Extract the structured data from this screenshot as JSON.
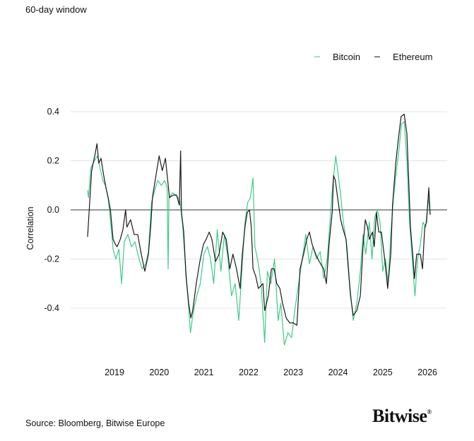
{
  "subtitle": "60-day window",
  "source": "Source: Bloomberg, Bitwise Europe",
  "logo": {
    "text": "Bitwise",
    "mark": "®"
  },
  "chart_data": {
    "type": "line",
    "title": "",
    "subtitle": "60-day window",
    "xlabel": "",
    "ylabel": "Correlation",
    "xlim": [
      2018.0,
      2026.45
    ],
    "ylim": [
      -0.58,
      0.42
    ],
    "yticks": [
      0.4,
      0.2,
      0.0,
      -0.2,
      -0.4
    ],
    "ytick_labels": [
      "0.4",
      "0.2",
      "0.0",
      "-0.2",
      "-0.4"
    ],
    "xticks": [
      2019,
      2020,
      2021,
      2022,
      2023,
      2024,
      2025,
      2026
    ],
    "xtick_labels": [
      "2019",
      "2020",
      "2021",
      "2022",
      "2023",
      "2024",
      "2025",
      "2026"
    ],
    "grid": "horizontal",
    "legend_position": "top-right",
    "series": [
      {
        "name": "Bitcoin",
        "color": "#3ecb8a",
        "points": [
          [
            2018.4,
            0.08
          ],
          [
            2018.42,
            0.05
          ],
          [
            2018.47,
            0.17
          ],
          [
            2018.55,
            0.2
          ],
          [
            2018.62,
            0.22
          ],
          [
            2018.68,
            0.17
          ],
          [
            2018.74,
            0.12
          ],
          [
            2018.8,
            0.1
          ],
          [
            2018.86,
            0.05
          ],
          [
            2018.92,
            -0.06
          ],
          [
            2018.97,
            -0.16
          ],
          [
            2019.03,
            -0.2
          ],
          [
            2019.1,
            -0.16
          ],
          [
            2019.16,
            -0.3
          ],
          [
            2019.22,
            -0.13
          ],
          [
            2019.3,
            -0.1
          ],
          [
            2019.38,
            -0.15
          ],
          [
            2019.46,
            -0.13
          ],
          [
            2019.55,
            -0.2
          ],
          [
            2019.62,
            -0.24
          ],
          [
            2019.7,
            -0.22
          ],
          [
            2019.76,
            -0.17
          ],
          [
            2019.83,
            0.03
          ],
          [
            2019.9,
            0.08
          ],
          [
            2019.97,
            0.12
          ],
          [
            2020.05,
            0.1
          ],
          [
            2020.12,
            0.12
          ],
          [
            2020.18,
            0.09
          ],
          [
            2020.2,
            -0.24
          ],
          [
            2020.22,
            0.05
          ],
          [
            2020.3,
            0.07
          ],
          [
            2020.38,
            0.06
          ],
          [
            2020.46,
            0.04
          ],
          [
            2020.52,
            -0.05
          ],
          [
            2020.58,
            -0.2
          ],
          [
            2020.64,
            -0.35
          ],
          [
            2020.7,
            -0.5
          ],
          [
            2020.76,
            -0.42
          ],
          [
            2020.84,
            -0.35
          ],
          [
            2020.92,
            -0.3
          ],
          [
            2021.0,
            -0.18
          ],
          [
            2021.08,
            -0.15
          ],
          [
            2021.15,
            -0.2
          ],
          [
            2021.22,
            -0.3
          ],
          [
            2021.3,
            -0.08
          ],
          [
            2021.38,
            -0.25
          ],
          [
            2021.46,
            -0.1
          ],
          [
            2021.54,
            -0.2
          ],
          [
            2021.62,
            -0.35
          ],
          [
            2021.7,
            -0.3
          ],
          [
            2021.78,
            -0.45
          ],
          [
            2021.85,
            -0.25
          ],
          [
            2021.92,
            -0.05
          ],
          [
            2021.98,
            0.03
          ],
          [
            2022.04,
            0.05
          ],
          [
            2022.1,
            0.13
          ],
          [
            2022.14,
            -0.15
          ],
          [
            2022.2,
            -0.2
          ],
          [
            2022.28,
            -0.3
          ],
          [
            2022.36,
            -0.54
          ],
          [
            2022.42,
            -0.25
          ],
          [
            2022.5,
            -0.3
          ],
          [
            2022.58,
            -0.2
          ],
          [
            2022.66,
            -0.45
          ],
          [
            2022.72,
            -0.38
          ],
          [
            2022.8,
            -0.55
          ],
          [
            2022.88,
            -0.5
          ],
          [
            2022.96,
            -0.52
          ],
          [
            2023.04,
            -0.4
          ],
          [
            2023.12,
            -0.3
          ],
          [
            2023.2,
            -0.2
          ],
          [
            2023.28,
            -0.1
          ],
          [
            2023.36,
            -0.22
          ],
          [
            2023.44,
            -0.15
          ],
          [
            2023.52,
            -0.2
          ],
          [
            2023.6,
            -0.17
          ],
          [
            2023.68,
            -0.28
          ],
          [
            2023.76,
            -0.2
          ],
          [
            2023.82,
            -0.05
          ],
          [
            2023.88,
            0.1
          ],
          [
            2023.95,
            0.22
          ],
          [
            2024.0,
            0.15
          ],
          [
            2024.06,
            0.06
          ],
          [
            2024.12,
            -0.05
          ],
          [
            2024.2,
            -0.15
          ],
          [
            2024.26,
            -0.3
          ],
          [
            2024.34,
            -0.45
          ],
          [
            2024.42,
            -0.38
          ],
          [
            2024.5,
            -0.25
          ],
          [
            2024.56,
            -0.1
          ],
          [
            2024.62,
            -0.18
          ],
          [
            2024.7,
            -0.05
          ],
          [
            2024.76,
            -0.2
          ],
          [
            2024.82,
            -0.03
          ],
          [
            2024.88,
            0.0
          ],
          [
            2024.94,
            -0.05
          ],
          [
            2025.0,
            -0.25
          ],
          [
            2025.06,
            -0.2
          ],
          [
            2025.12,
            -0.3
          ],
          [
            2025.18,
            -0.1
          ],
          [
            2025.24,
            0.05
          ],
          [
            2025.3,
            0.15
          ],
          [
            2025.36,
            0.24
          ],
          [
            2025.42,
            0.35
          ],
          [
            2025.48,
            0.36
          ],
          [
            2025.54,
            0.2
          ],
          [
            2025.6,
            -0.05
          ],
          [
            2025.66,
            -0.2
          ],
          [
            2025.72,
            -0.35
          ],
          [
            2025.78,
            -0.2
          ],
          [
            2025.84,
            -0.14
          ],
          [
            2025.9,
            -0.05
          ],
          [
            2025.96,
            -0.07
          ],
          [
            2026.02,
            0.05
          ],
          [
            2026.06,
            -0.02
          ]
        ]
      },
      {
        "name": "Ethereum",
        "color": "#1a1a1a",
        "points": [
          [
            2018.4,
            -0.11
          ],
          [
            2018.43,
            -0.02
          ],
          [
            2018.49,
            0.16
          ],
          [
            2018.56,
            0.22
          ],
          [
            2018.61,
            0.27
          ],
          [
            2018.65,
            0.19
          ],
          [
            2018.7,
            0.21
          ],
          [
            2018.76,
            0.14
          ],
          [
            2018.81,
            0.09
          ],
          [
            2018.86,
            0.05
          ],
          [
            2018.91,
            0.0
          ],
          [
            2018.97,
            -0.12
          ],
          [
            2019.02,
            -0.14
          ],
          [
            2019.06,
            -0.15
          ],
          [
            2019.13,
            -0.12
          ],
          [
            2019.19,
            -0.08
          ],
          [
            2019.25,
            0.0
          ],
          [
            2019.28,
            -0.07
          ],
          [
            2019.36,
            -0.04
          ],
          [
            2019.44,
            -0.1
          ],
          [
            2019.52,
            -0.1
          ],
          [
            2019.6,
            -0.18
          ],
          [
            2019.68,
            -0.25
          ],
          [
            2019.76,
            -0.18
          ],
          [
            2019.81,
            -0.07
          ],
          [
            2019.85,
            0.05
          ],
          [
            2019.92,
            0.13
          ],
          [
            2020.0,
            0.22
          ],
          [
            2020.07,
            0.16
          ],
          [
            2020.14,
            0.21
          ],
          [
            2020.18,
            0.14
          ],
          [
            2020.23,
            0.05
          ],
          [
            2020.31,
            0.06
          ],
          [
            2020.39,
            0.06
          ],
          [
            2020.45,
            0.02
          ],
          [
            2020.48,
            0.24
          ],
          [
            2020.5,
            -0.01
          ],
          [
            2020.55,
            -0.09
          ],
          [
            2020.6,
            -0.27
          ],
          [
            2020.66,
            -0.38
          ],
          [
            2020.71,
            -0.44
          ],
          [
            2020.75,
            -0.41
          ],
          [
            2020.83,
            -0.3
          ],
          [
            2020.91,
            -0.21
          ],
          [
            2020.99,
            -0.14
          ],
          [
            2021.05,
            -0.12
          ],
          [
            2021.12,
            -0.09
          ],
          [
            2021.18,
            -0.12
          ],
          [
            2021.26,
            -0.21
          ],
          [
            2021.34,
            -0.18
          ],
          [
            2021.42,
            -0.09
          ],
          [
            2021.5,
            -0.12
          ],
          [
            2021.58,
            -0.24
          ],
          [
            2021.65,
            -0.18
          ],
          [
            2021.73,
            -0.24
          ],
          [
            2021.81,
            -0.32
          ],
          [
            2021.86,
            -0.18
          ],
          [
            2021.92,
            -0.07
          ],
          [
            2021.97,
            -0.01
          ],
          [
            2022.02,
            0.0
          ],
          [
            2022.06,
            -0.07
          ],
          [
            2022.1,
            -0.24
          ],
          [
            2022.16,
            -0.27
          ],
          [
            2022.22,
            -0.32
          ],
          [
            2022.32,
            -0.3
          ],
          [
            2022.36,
            -0.41
          ],
          [
            2022.44,
            -0.35
          ],
          [
            2022.51,
            -0.24
          ],
          [
            2022.57,
            -0.24
          ],
          [
            2022.63,
            -0.3
          ],
          [
            2022.7,
            -0.32
          ],
          [
            2022.76,
            -0.38
          ],
          [
            2022.84,
            -0.44
          ],
          [
            2022.92,
            -0.46
          ],
          [
            2023.0,
            -0.46
          ],
          [
            2023.08,
            -0.47
          ],
          [
            2023.15,
            -0.24
          ],
          [
            2023.23,
            -0.18
          ],
          [
            2023.3,
            -0.12
          ],
          [
            2023.36,
            -0.09
          ],
          [
            2023.42,
            -0.14
          ],
          [
            2023.5,
            -0.18
          ],
          [
            2023.58,
            -0.21
          ],
          [
            2023.68,
            -0.24
          ],
          [
            2023.74,
            -0.3
          ],
          [
            2023.8,
            -0.14
          ],
          [
            2023.87,
            -0.01
          ],
          [
            2023.9,
            0.14
          ],
          [
            2023.94,
            0.12
          ],
          [
            2023.99,
            0.05
          ],
          [
            2024.06,
            -0.04
          ],
          [
            2024.1,
            -0.07
          ],
          [
            2024.18,
            -0.12
          ],
          [
            2024.23,
            -0.24
          ],
          [
            2024.28,
            -0.35
          ],
          [
            2024.34,
            -0.43
          ],
          [
            2024.42,
            -0.41
          ],
          [
            2024.5,
            -0.35
          ],
          [
            2024.56,
            -0.15
          ],
          [
            2024.61,
            -0.04
          ],
          [
            2024.66,
            -0.07
          ],
          [
            2024.7,
            -0.12
          ],
          [
            2024.77,
            -0.09
          ],
          [
            2024.81,
            -0.15
          ],
          [
            2024.86,
            -0.01
          ],
          [
            2024.91,
            -0.09
          ],
          [
            2024.97,
            -0.09
          ],
          [
            2025.05,
            -0.21
          ],
          [
            2025.11,
            -0.32
          ],
          [
            2025.18,
            -0.18
          ],
          [
            2025.22,
            0.02
          ],
          [
            2025.29,
            0.19
          ],
          [
            2025.35,
            0.29
          ],
          [
            2025.41,
            0.38
          ],
          [
            2025.48,
            0.39
          ],
          [
            2025.54,
            0.31
          ],
          [
            2025.59,
            0.08
          ],
          [
            2025.62,
            -0.07
          ],
          [
            2025.67,
            -0.18
          ],
          [
            2025.71,
            -0.28
          ],
          [
            2025.76,
            -0.18
          ],
          [
            2025.84,
            -0.18
          ],
          [
            2025.89,
            -0.24
          ],
          [
            2025.94,
            -0.07
          ],
          [
            2025.98,
            -0.05
          ],
          [
            2026.03,
            0.09
          ],
          [
            2026.06,
            -0.02
          ]
        ]
      }
    ]
  }
}
